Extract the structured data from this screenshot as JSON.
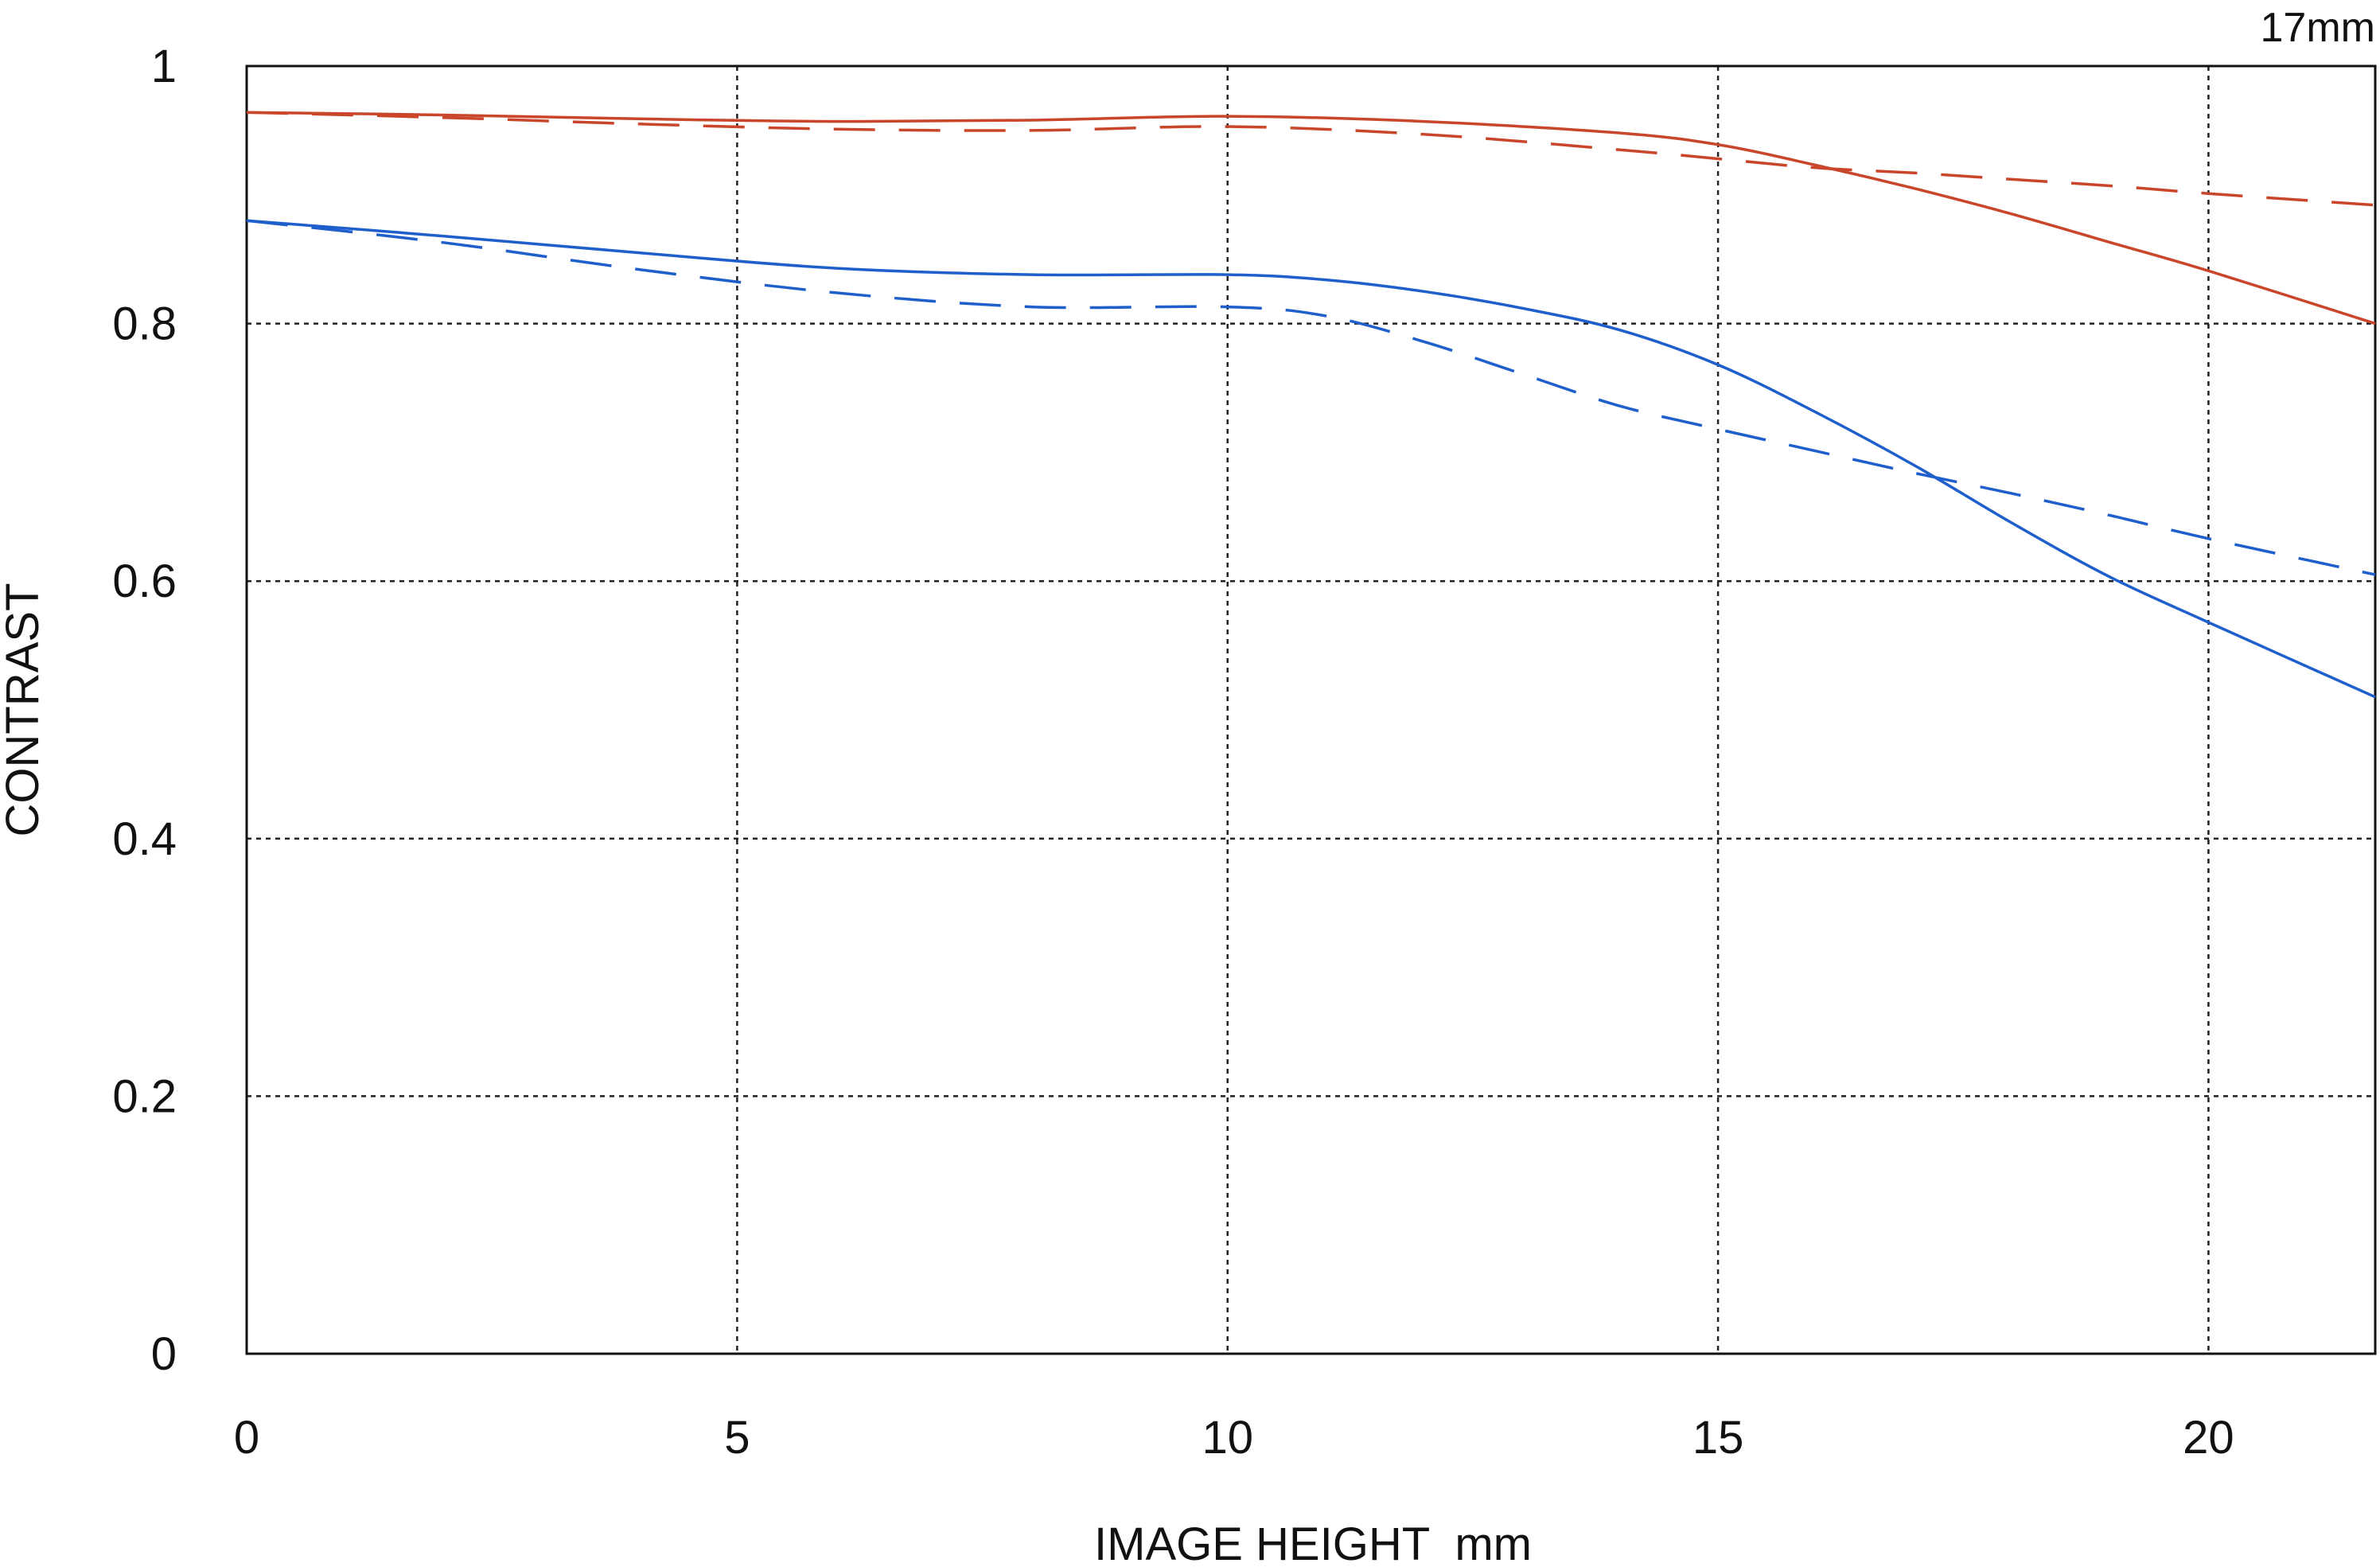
{
  "chart_data": {
    "type": "line",
    "title": "",
    "corner_label": "17mm",
    "xlabel": "IMAGE HEIGHT  mm",
    "ylabel": "CONTRAST",
    "xlim": [
      0,
      21.7
    ],
    "ylim": [
      0,
      1
    ],
    "x_ticks": [
      0,
      5,
      10,
      15,
      20
    ],
    "x_tick_labels": [
      "0",
      "5",
      "10",
      "15",
      "20"
    ],
    "y_ticks": [
      0,
      0.2,
      0.4,
      0.6,
      0.8,
      1
    ],
    "y_tick_labels": [
      "0",
      "0.2",
      "0.4",
      "0.6",
      "0.8",
      "1"
    ],
    "grid": true,
    "legend": "none",
    "series": [
      {
        "color": "#c9462b",
        "dash": "solid",
        "points": [
          [
            0,
            0.964
          ],
          [
            2,
            0.962
          ],
          [
            4,
            0.959
          ],
          [
            6,
            0.957
          ],
          [
            8,
            0.958
          ],
          [
            10,
            0.961
          ],
          [
            12,
            0.957
          ],
          [
            14,
            0.948
          ],
          [
            15,
            0.939
          ],
          [
            16,
            0.923
          ],
          [
            17,
            0.905
          ],
          [
            18,
            0.885
          ],
          [
            19,
            0.863
          ],
          [
            20,
            0.841
          ],
          [
            21.7,
            0.8
          ]
        ]
      },
      {
        "color": "#c9462b",
        "dash": "dashed",
        "points": [
          [
            0,
            0.964
          ],
          [
            2,
            0.96
          ],
          [
            4,
            0.955
          ],
          [
            6,
            0.951
          ],
          [
            8,
            0.95
          ],
          [
            10,
            0.953
          ],
          [
            12,
            0.947
          ],
          [
            14,
            0.935
          ],
          [
            15,
            0.928
          ],
          [
            16,
            0.921
          ],
          [
            17,
            0.917
          ],
          [
            18,
            0.912
          ],
          [
            19,
            0.907
          ],
          [
            20,
            0.901
          ],
          [
            21.7,
            0.892
          ]
        ]
      },
      {
        "color": "#1f5fcc",
        "dash": "solid",
        "points": [
          [
            0,
            0.88
          ],
          [
            2,
            0.868
          ],
          [
            4,
            0.855
          ],
          [
            6,
            0.843
          ],
          [
            8,
            0.838
          ],
          [
            10,
            0.838
          ],
          [
            11,
            0.834
          ],
          [
            12,
            0.825
          ],
          [
            13,
            0.812
          ],
          [
            14,
            0.795
          ],
          [
            15,
            0.768
          ],
          [
            16,
            0.731
          ],
          [
            17,
            0.69
          ],
          [
            18,
            0.645
          ],
          [
            19,
            0.603
          ],
          [
            20,
            0.568
          ],
          [
            21.7,
            0.51
          ]
        ]
      },
      {
        "color": "#1f5fcc",
        "dash": "dashed",
        "points": [
          [
            0,
            0.88
          ],
          [
            2,
            0.863
          ],
          [
            4,
            0.842
          ],
          [
            6,
            0.824
          ],
          [
            8,
            0.813
          ],
          [
            10,
            0.813
          ],
          [
            11,
            0.806
          ],
          [
            12,
            0.786
          ],
          [
            13,
            0.761
          ],
          [
            14,
            0.736
          ],
          [
            15,
            0.718
          ],
          [
            16,
            0.701
          ],
          [
            17,
            0.684
          ],
          [
            18,
            0.668
          ],
          [
            19,
            0.651
          ],
          [
            20,
            0.633
          ],
          [
            21.7,
            0.605
          ]
        ]
      }
    ]
  }
}
